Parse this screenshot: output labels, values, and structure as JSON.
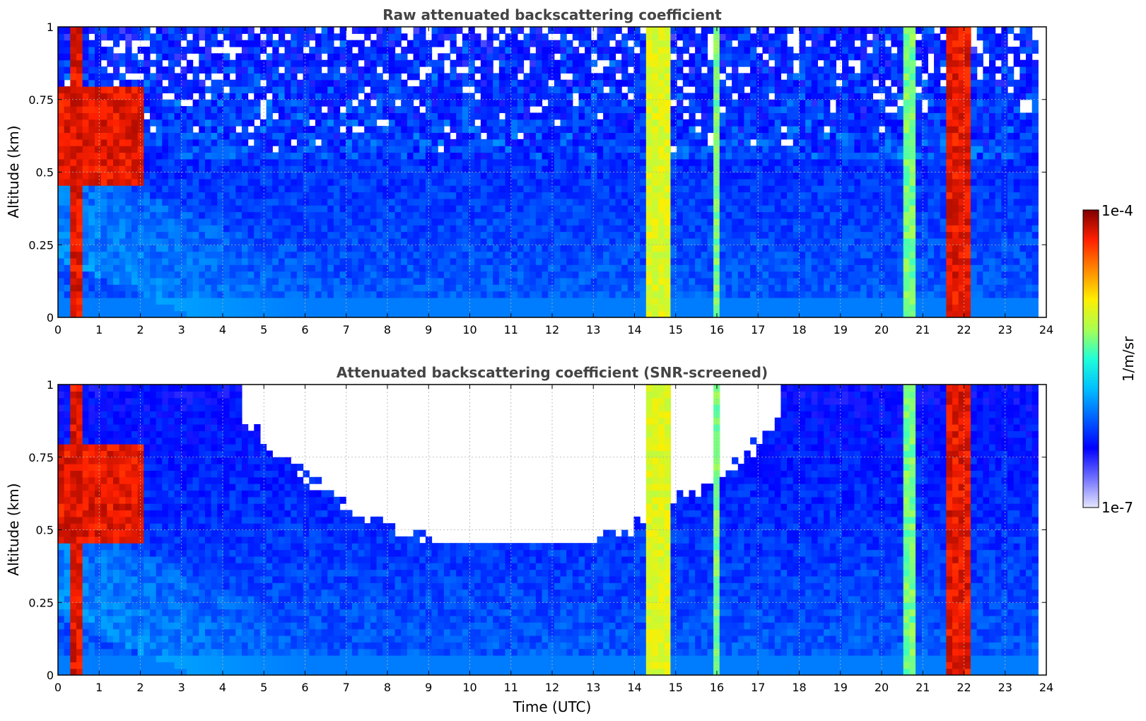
{
  "chart_data": [
    {
      "type": "heatmap",
      "title": "Raw attenuated backscattering coefficient",
      "xlabel": "",
      "ylabel": "Altitude (km)",
      "xlim": [
        0,
        24
      ],
      "ylim": [
        0,
        1
      ],
      "x_ticks": [
        "0",
        "1",
        "2",
        "3",
        "4",
        "5",
        "6",
        "7",
        "8",
        "9",
        "10",
        "11",
        "12",
        "13",
        "14",
        "15",
        "16",
        "17",
        "18",
        "19",
        "20",
        "21",
        "22",
        "23",
        "24"
      ],
      "y_ticks": [
        "0",
        "0.25",
        "0.5",
        "0.75",
        "1"
      ],
      "y_tick_values": [
        0,
        0.25,
        0.5,
        0.75,
        1
      ],
      "grid": true,
      "data_end_hour": 23.8,
      "screened": false,
      "features": [
        {
          "x": [
            0.3,
            0.45
          ],
          "y": [
            0,
            1
          ],
          "level": "high"
        },
        {
          "x": [
            0.05,
            2.0
          ],
          "y": [
            0.45,
            0.8
          ],
          "level": "high"
        },
        {
          "x": [
            14.3,
            14.75
          ],
          "y": [
            0,
            1
          ],
          "level": "medium-high"
        },
        {
          "x": [
            15.85,
            15.95
          ],
          "y": [
            0,
            1
          ],
          "level": "medium"
        },
        {
          "x": [
            20.6,
            20.65
          ],
          "y": [
            0,
            1
          ],
          "level": "medium"
        },
        {
          "x": [
            21.6,
            22.05
          ],
          "y": [
            0,
            1
          ],
          "level": "high"
        }
      ]
    },
    {
      "type": "heatmap",
      "title": "Attenuated backscattering coefficient (SNR-screened)",
      "xlabel": "Time (UTC)",
      "ylabel": "Altitude (km)",
      "xlim": [
        0,
        24
      ],
      "ylim": [
        0,
        1
      ],
      "x_ticks": [
        "0",
        "1",
        "2",
        "3",
        "4",
        "5",
        "6",
        "7",
        "8",
        "9",
        "10",
        "11",
        "12",
        "13",
        "14",
        "15",
        "16",
        "17",
        "18",
        "19",
        "20",
        "21",
        "22",
        "23",
        "24"
      ],
      "y_ticks": [
        "0",
        "0.25",
        "0.5",
        "0.75",
        "1"
      ],
      "y_tick_values": [
        0,
        0.25,
        0.5,
        0.75,
        1
      ],
      "grid": true,
      "data_end_hour": 23.8,
      "screened": true,
      "features": [
        {
          "x": [
            0.3,
            0.45
          ],
          "y": [
            0,
            1
          ],
          "level": "high"
        },
        {
          "x": [
            0.05,
            2.0
          ],
          "y": [
            0.45,
            0.8
          ],
          "level": "high"
        },
        {
          "x": [
            14.3,
            14.75
          ],
          "y": [
            0,
            1
          ],
          "level": "medium-high"
        },
        {
          "x": [
            15.85,
            15.95
          ],
          "y": [
            0,
            1
          ],
          "level": "medium"
        },
        {
          "x": [
            20.6,
            20.65
          ],
          "y": [
            0,
            1
          ],
          "level": "medium"
        },
        {
          "x": [
            21.6,
            22.05
          ],
          "y": [
            0,
            1
          ],
          "level": "high"
        }
      ],
      "screened_region": {
        "x": [
          4.5,
          17.5
        ],
        "y": [
          0.45,
          1
        ]
      }
    }
  ],
  "colorbar": {
    "label": "1/m/sr",
    "max_label": "1e-4",
    "min_label": "1e-7",
    "scale": "log",
    "range": [
      1e-07,
      0.0001
    ],
    "colors": [
      "#e6e6ff",
      "#6f6fff",
      "#0000ff",
      "#0060ff",
      "#00c0ff",
      "#20ffd8",
      "#aaff50",
      "#ffee00",
      "#ff8800",
      "#ff2000",
      "#7f0000"
    ]
  }
}
